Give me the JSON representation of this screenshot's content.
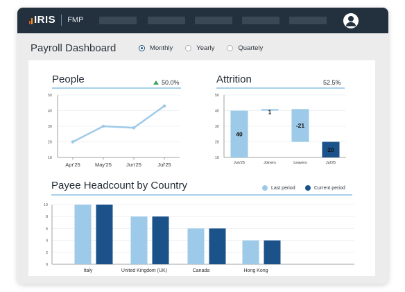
{
  "app": {
    "brand": "IRIS",
    "product": "FMP"
  },
  "header": {
    "title": "Payroll Dashboard"
  },
  "period_options": [
    {
      "label": "Monthly",
      "selected": true
    },
    {
      "label": "Yearly",
      "selected": false
    },
    {
      "label": "Quartely",
      "selected": false
    }
  ],
  "colors": {
    "topbar": "#23303d",
    "last_period": "#9ecae9",
    "current_period": "#1a5289",
    "line": "#9ecae9"
  },
  "people": {
    "title": "People",
    "change": "50.0%",
    "change_icon": "triangle-up-icon"
  },
  "attrition": {
    "title": "Attrition",
    "value": "52.5%"
  },
  "headcount": {
    "title": "Payee Headcount by Country",
    "legend": [
      "Last period",
      "Current period"
    ]
  },
  "chart_data": [
    {
      "type": "line",
      "categories": [
        "Apr'25",
        "May'25",
        "Jun'25",
        "Jul'25"
      ],
      "series": [
        {
          "values": [
            20,
            30,
            29,
            43
          ]
        }
      ],
      "ylim": [
        10,
        50
      ],
      "yticks": [
        "50",
        "40",
        "30",
        "20",
        "10"
      ]
    },
    {
      "type": "bar",
      "subtype": "waterfall",
      "categories": [
        "Jun'25",
        "Joiners",
        "Leavers",
        "Jul'25"
      ],
      "values": [
        40,
        1,
        -21,
        20
      ],
      "data_labels": [
        "40",
        "1",
        "-21",
        "20"
      ],
      "ylim": [
        10,
        50
      ],
      "yticks": [
        "50",
        "40",
        "30",
        "20",
        "10"
      ]
    },
    {
      "type": "bar",
      "categories": [
        "Italy",
        "United Kingdom (UK)",
        "Canada",
        "Hong Kong"
      ],
      "series": [
        {
          "name": "Last period",
          "values": [
            10,
            8,
            6,
            4
          ]
        },
        {
          "name": "Current period",
          "values": [
            10,
            8,
            6,
            4
          ]
        }
      ],
      "ylim": [
        0,
        10
      ],
      "yticks": [
        "10",
        "8",
        "6",
        "4",
        "2",
        "0"
      ]
    }
  ]
}
